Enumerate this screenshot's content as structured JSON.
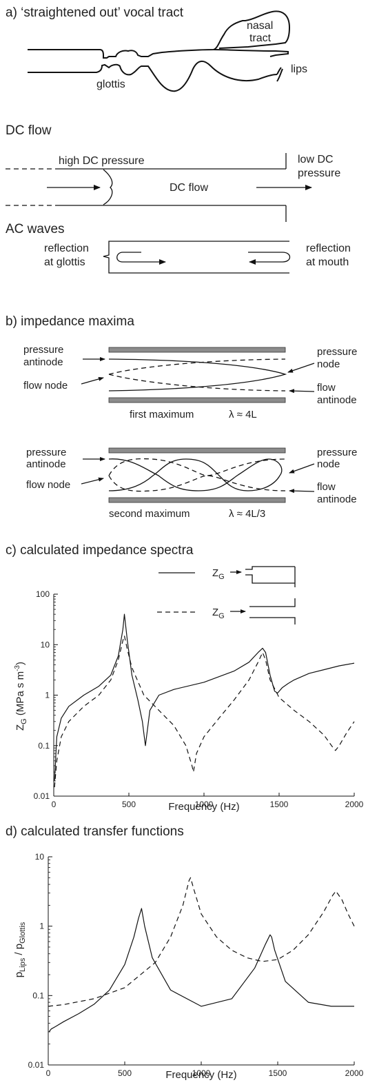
{
  "panel_a": {
    "heading": "a)  ‘straightened out’ vocal tract",
    "nasal_line1": "nasal",
    "nasal_line2": "tract",
    "lips": "lips",
    "glottis": "glottis"
  },
  "dc_flow": {
    "heading": "DC  flow",
    "high_pressure": "high DC pressure",
    "low_line1": "low DC",
    "low_line2": "pressure",
    "flow_label": "DC  flow"
  },
  "ac_waves": {
    "heading": "AC waves",
    "refl_glottis_line1": "reflection",
    "refl_glottis_line2": "at glottis",
    "refl_mouth_line1": "reflection",
    "refl_mouth_line2": "at mouth"
  },
  "panel_b": {
    "heading": "b)  impedance maxima",
    "first": {
      "pa1": "pressure",
      "pa2": "antinode",
      "fn": "flow node",
      "pn1": "pressure",
      "pn2": "node",
      "fa1": "flow",
      "fa2": "antinode",
      "caption": "first maximum",
      "lambda": "λ ≈ 4L"
    },
    "second": {
      "pa1": "pressure",
      "pa2": "antinode",
      "fn": "flow node",
      "pn1": "pressure",
      "pn2": "node",
      "fa1": "flow",
      "fa2": "antinode",
      "caption": "second maximum",
      "lambda": "λ ≈ 4L/3"
    }
  },
  "panel_c": {
    "heading": "c)  calculated impedance spectra",
    "zg_label": "Z",
    "zg_sub": "G",
    "ylabel_main": "Z",
    "ylabel_sub": "G",
    "ylabel_rest": " (MPa s m",
    "ylabel_sup": "-3",
    "ylabel_close": ")",
    "xlabel": "Frequency (Hz)"
  },
  "panel_d": {
    "heading": "d)  calculated transfer functions",
    "ylabel_p1": "p",
    "ylabel_s1": "Lips",
    "ylabel_mid": " / p",
    "ylabel_s2": "Glottis",
    "xlabel": "Frequency (Hz)"
  },
  "chart_data": [
    {
      "type": "line",
      "title": "calculated impedance spectra",
      "xlabel": "Frequency (Hz)",
      "ylabel": "ZG (MPa s m-3)",
      "xlim": [
        0,
        2000
      ],
      "ylim": [
        0.01,
        100
      ],
      "yscale": "log",
      "xticks": [
        "0",
        "500",
        "1000",
        "1500",
        "2000"
      ],
      "yticks": [
        "0.01",
        "0.1",
        "1",
        "10",
        "100"
      ],
      "series": [
        {
          "style": "solid",
          "x": [
            5,
            20,
            50,
            100,
            200,
            300,
            380,
            430,
            460,
            470,
            490,
            520,
            560,
            590,
            610,
            640,
            700,
            800,
            1000,
            1200,
            1300,
            1360,
            1390,
            1410,
            1440,
            1470,
            1490,
            1520,
            1560,
            1600,
            1700,
            1800,
            1900,
            2000
          ],
          "y": [
            0.02,
            0.15,
            0.35,
            0.6,
            1.0,
            1.5,
            2.5,
            6,
            20,
            40,
            12,
            2.5,
            0.8,
            0.3,
            0.1,
            0.5,
            1.0,
            1.3,
            1.8,
            3.0,
            4.5,
            7.0,
            8.5,
            7.0,
            2.5,
            1.2,
            1.1,
            1.4,
            1.7,
            2.0,
            2.7,
            3.2,
            3.8,
            4.3
          ]
        },
        {
          "style": "dashed",
          "x": [
            5,
            20,
            50,
            100,
            200,
            300,
            380,
            430,
            460,
            470,
            490,
            520,
            600,
            700,
            800,
            880,
            920,
            930,
            950,
            1000,
            1100,
            1200,
            1300,
            1360,
            1390,
            1410,
            1440,
            1500,
            1600,
            1700,
            1800,
            1860,
            1875,
            1900,
            1950,
            2000
          ],
          "y": [
            0.015,
            0.05,
            0.15,
            0.3,
            0.6,
            1.0,
            2.0,
            5,
            12,
            15,
            8,
            3.5,
            1.0,
            0.5,
            0.25,
            0.1,
            0.04,
            0.03,
            0.07,
            0.15,
            0.35,
            0.8,
            2.0,
            4.5,
            7.0,
            5.0,
            2.0,
            0.9,
            0.5,
            0.3,
            0.16,
            0.09,
            0.08,
            0.1,
            0.18,
            0.3
          ]
        }
      ]
    },
    {
      "type": "line",
      "title": "calculated transfer functions",
      "xlabel": "Frequency (Hz)",
      "ylabel": "pLips / pGlottis",
      "xlim": [
        0,
        2000
      ],
      "ylim": [
        0.01,
        10
      ],
      "yscale": "log",
      "xticks": [
        "0",
        "500",
        "1000",
        "1500",
        "2000"
      ],
      "yticks": [
        "0.01",
        "0.1",
        "1",
        "10"
      ],
      "series": [
        {
          "style": "solid",
          "x": [
            5,
            20,
            50,
            100,
            200,
            300,
            400,
            500,
            560,
            590,
            610,
            630,
            680,
            800,
            1000,
            1200,
            1350,
            1420,
            1450,
            1460,
            1480,
            1550,
            1700,
            1850,
            2000
          ],
          "y": [
            0.03,
            0.033,
            0.036,
            0.042,
            0.055,
            0.075,
            0.12,
            0.28,
            0.7,
            1.3,
            1.8,
            1.0,
            0.35,
            0.12,
            0.07,
            0.09,
            0.25,
            0.55,
            0.75,
            0.7,
            0.45,
            0.16,
            0.08,
            0.07,
            0.07
          ]
        },
        {
          "style": "dashed",
          "x": [
            0,
            100,
            300,
            500,
            700,
            800,
            880,
            920,
            930,
            950,
            1000,
            1100,
            1200,
            1300,
            1400,
            1500,
            1600,
            1700,
            1800,
            1860,
            1880,
            1920,
            1960,
            2000
          ],
          "y": [
            0.07,
            0.074,
            0.09,
            0.13,
            0.3,
            0.7,
            2.0,
            4.5,
            5.0,
            3.5,
            1.5,
            0.7,
            0.45,
            0.35,
            0.31,
            0.33,
            0.45,
            0.75,
            1.6,
            2.8,
            3.2,
            2.4,
            1.5,
            1.0
          ]
        }
      ]
    }
  ]
}
